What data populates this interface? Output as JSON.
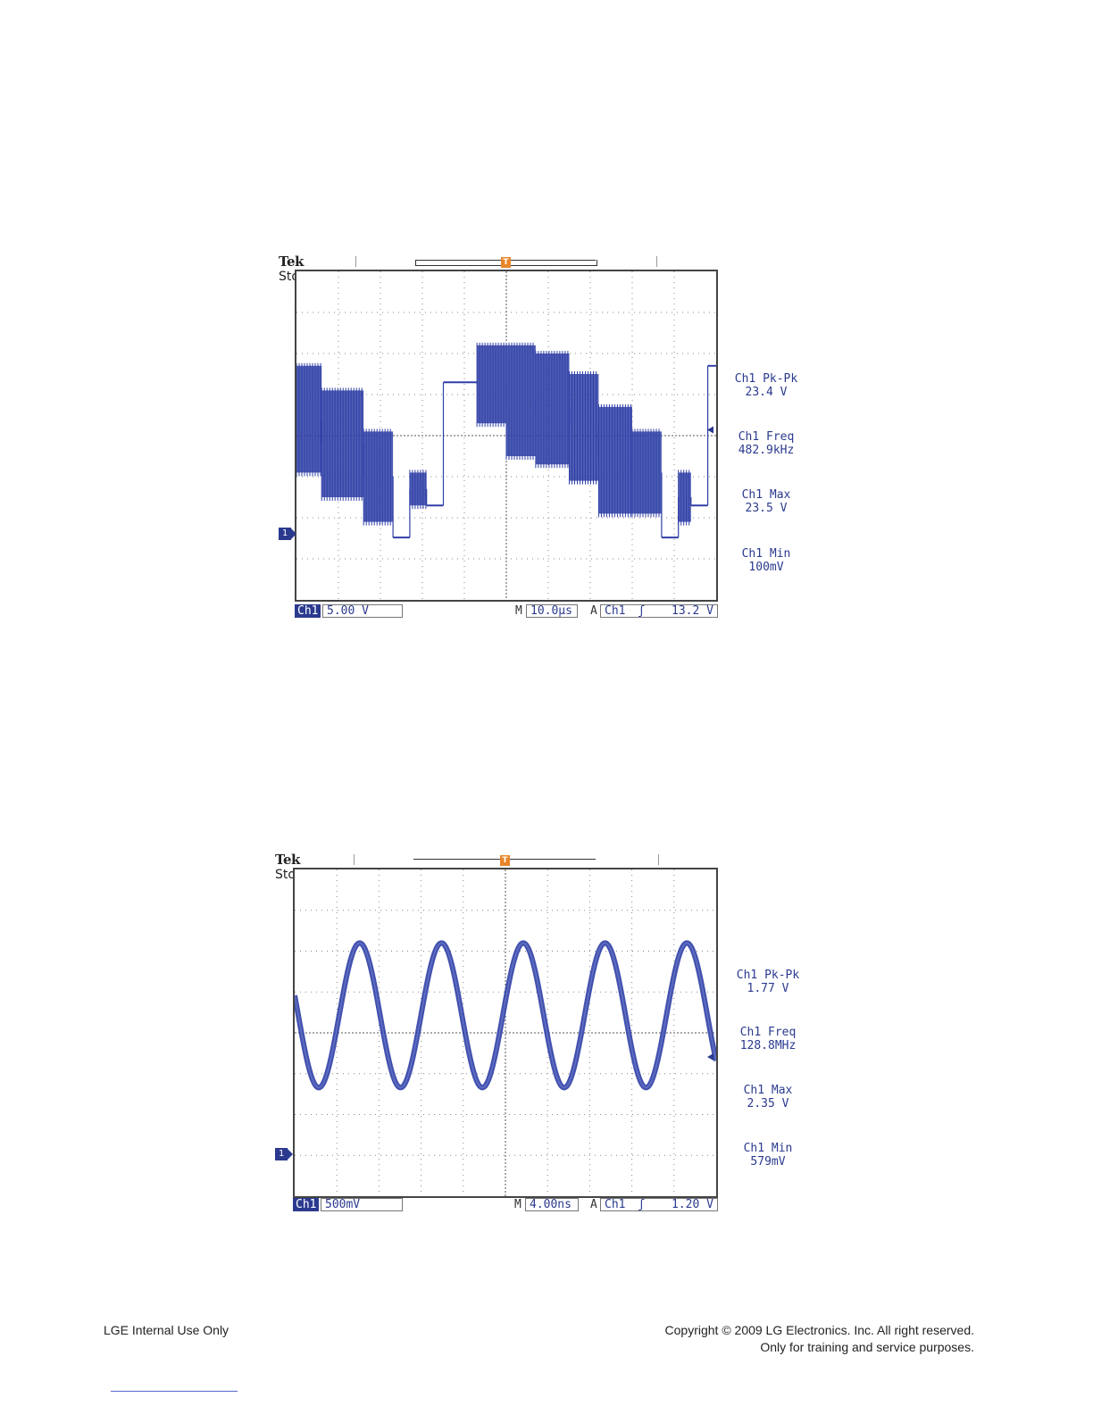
{
  "scopes": [
    {
      "brand": "Tek",
      "status": "Stop",
      "channel": "Ch1",
      "volts_per_div": "5.00 V",
      "time_prefix": "M",
      "time_per_div": "10.0µs",
      "trigger_prefix": "A",
      "trigger_channel": "Ch1",
      "trigger_slope": "ʃ",
      "trigger_level": "13.2 V",
      "channel_marker": "1",
      "trigger_marker": "T",
      "measurements": [
        {
          "name": "Ch1 Pk-Pk",
          "value": "23.4 V"
        },
        {
          "name": "Ch1 Freq",
          "value": "482.9kHz"
        },
        {
          "name": "Ch1 Max",
          "value": "23.5 V"
        },
        {
          "name": "Ch1 Min",
          "value": "100mV"
        }
      ]
    },
    {
      "brand": "Tek",
      "status": "Stop",
      "channel": "Ch1",
      "volts_per_div": "500mV",
      "time_prefix": "M",
      "time_per_div": "4.00ns",
      "trigger_prefix": "A",
      "trigger_channel": "Ch1",
      "trigger_slope": "ʃ",
      "trigger_level": "1.20 V",
      "channel_marker": "1",
      "trigger_marker": "T",
      "measurements": [
        {
          "name": "Ch1 Pk-Pk",
          "value": "1.77 V"
        },
        {
          "name": "Ch1 Freq",
          "value": "128.8MHz"
        },
        {
          "name": "Ch1 Max",
          "value": "2.35 V"
        },
        {
          "name": "Ch1 Min",
          "value": "579mV"
        }
      ]
    }
  ],
  "chart_data": [
    {
      "type": "line",
      "xlabel": "",
      "ylabel": "",
      "grid": true,
      "x_unit": "µs",
      "y_unit": "V",
      "xlim": [
        -50,
        50
      ],
      "ylim": [
        -7.5,
        32.5
      ],
      "segments": [
        {
          "x": [
            -50,
            -44
          ],
          "low": 8,
          "high": 21,
          "kind": "burst"
        },
        {
          "x": [
            -44,
            -34
          ],
          "low": 5,
          "high": 18,
          "kind": "burst"
        },
        {
          "x": [
            -34,
            -27
          ],
          "low": 2,
          "high": 13,
          "kind": "burst"
        },
        {
          "x": [
            -27,
            -23
          ],
          "low": 0.1,
          "high": 0.1,
          "kind": "flat"
        },
        {
          "x": [
            -23,
            -19
          ],
          "low": 4,
          "high": 8,
          "kind": "burst"
        },
        {
          "x": [
            -19,
            -15
          ],
          "low": 4,
          "high": 4,
          "kind": "flat"
        },
        {
          "x": [
            -15,
            -7
          ],
          "low": 19,
          "high": 19,
          "kind": "flat"
        },
        {
          "x": [
            -7,
            0
          ],
          "low": 14,
          "high": 23.5,
          "kind": "burst"
        },
        {
          "x": [
            0,
            7
          ],
          "low": 10,
          "high": 23.5,
          "kind": "burst"
        },
        {
          "x": [
            7,
            15
          ],
          "low": 9,
          "high": 22.5,
          "kind": "burst"
        },
        {
          "x": [
            15,
            22
          ],
          "low": 7,
          "high": 20,
          "kind": "burst"
        },
        {
          "x": [
            22,
            30
          ],
          "low": 3,
          "high": 16,
          "kind": "burst"
        },
        {
          "x": [
            30,
            37
          ],
          "low": 3,
          "high": 13,
          "kind": "burst"
        },
        {
          "x": [
            37,
            41
          ],
          "low": 0.1,
          "high": 0.1,
          "kind": "flat"
        },
        {
          "x": [
            41,
            44
          ],
          "low": 2,
          "high": 8,
          "kind": "burst"
        },
        {
          "x": [
            44,
            48
          ],
          "low": 4,
          "high": 4,
          "kind": "flat"
        },
        {
          "x": [
            48,
            50
          ],
          "low": 21,
          "high": 21,
          "kind": "flat"
        }
      ]
    },
    {
      "type": "line",
      "xlabel": "",
      "ylabel": "",
      "grid": true,
      "x_unit": "ns",
      "y_unit": "V",
      "xlim": [
        -20,
        20
      ],
      "ylim": [
        -0.75,
        3.25
      ],
      "series": [
        {
          "shape": "sine",
          "frequency_mhz": 128.8,
          "min": 0.579,
          "max": 2.35
        }
      ]
    }
  ],
  "footer": {
    "left": "LGE Internal Use Only",
    "right_line1": "Copyright © 2009 LG Electronics. Inc. All right reserved.",
    "right_line2": "Only for training and service purposes."
  }
}
